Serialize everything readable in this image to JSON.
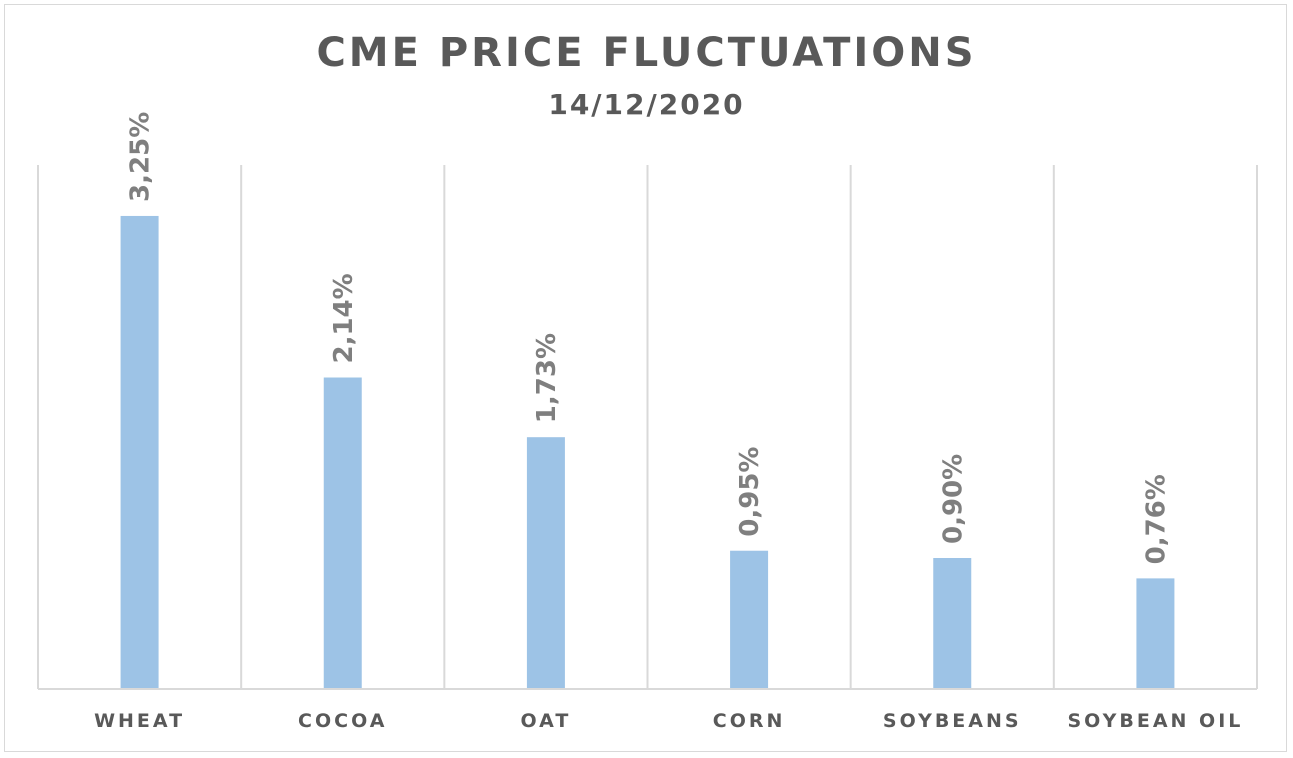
{
  "chart_data": {
    "type": "bar",
    "title": "CME PRICE FLUCTUATIONS",
    "subtitle": "14/12/2020",
    "categories": [
      "WHEAT",
      "COCOA",
      "OAT",
      "CORN",
      "SOYBEANS",
      "SOYBEAN OIL"
    ],
    "values": [
      3.25,
      2.14,
      1.73,
      0.95,
      0.9,
      0.76
    ],
    "data_labels": [
      "3,25%",
      "2,14%",
      "1,73%",
      "0,95%",
      "0,90%",
      "0,76%"
    ],
    "ylim": [
      0,
      3.6
    ],
    "grid": "vertical category separators",
    "legend": "none",
    "colors": {
      "bar": "#9dc3e6",
      "text": "#595959",
      "data_label": "#7f7f7f",
      "grid": "#d9d9d9"
    }
  }
}
